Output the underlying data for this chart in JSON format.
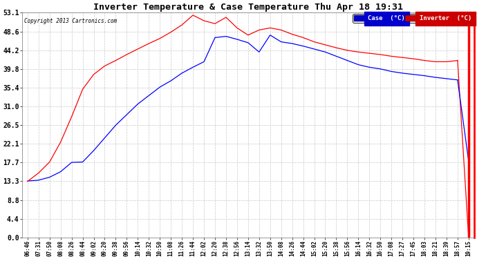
{
  "title": "Inverter Temperature & Case Temperature Thu Apr 18 19:31",
  "copyright": "Copyright 2013 Cartronics.com",
  "y_ticks": [
    0.0,
    4.4,
    8.8,
    13.3,
    17.7,
    22.1,
    26.5,
    31.0,
    35.4,
    39.8,
    44.2,
    48.6,
    53.1
  ],
  "ymin": 0.0,
  "ymax": 53.1,
  "case_color": "#0000ff",
  "inverter_color": "#ff0000",
  "background_color": "#ffffff",
  "grid_color": "#c8c8c8",
  "legend_case_bg": "#0000cc",
  "legend_inv_bg": "#cc0000",
  "x_labels": [
    "06:46",
    "07:31",
    "07:50",
    "08:08",
    "08:26",
    "08:44",
    "09:02",
    "09:20",
    "09:38",
    "09:56",
    "10:14",
    "10:32",
    "10:50",
    "11:08",
    "11:26",
    "11:44",
    "12:02",
    "12:20",
    "12:38",
    "12:56",
    "13:14",
    "13:32",
    "13:50",
    "14:08",
    "14:26",
    "14:44",
    "15:02",
    "15:20",
    "15:38",
    "15:56",
    "16:14",
    "16:32",
    "16:50",
    "17:08",
    "17:27",
    "17:45",
    "18:03",
    "18:21",
    "18:39",
    "18:57",
    "19:15"
  ],
  "case_data": [
    13.3,
    13.5,
    14.2,
    15.5,
    17.7,
    17.8,
    20.5,
    23.5,
    26.5,
    29.0,
    31.5,
    33.5,
    35.5,
    37.0,
    38.8,
    40.2,
    41.5,
    47.2,
    47.5,
    46.8,
    46.0,
    43.8,
    47.8,
    46.2,
    45.8,
    45.2,
    44.5,
    43.8,
    42.8,
    41.8,
    40.8,
    40.2,
    39.8,
    39.2,
    38.8,
    38.5,
    38.2,
    37.8,
    37.5,
    37.2,
    18.0
  ],
  "inverter_data": [
    13.2,
    15.2,
    17.8,
    22.5,
    28.5,
    35.0,
    38.5,
    40.5,
    41.8,
    43.2,
    44.5,
    45.8,
    47.0,
    48.5,
    50.2,
    52.5,
    51.2,
    50.5,
    52.0,
    49.5,
    47.8,
    49.0,
    49.5,
    49.0,
    48.0,
    47.2,
    46.2,
    45.5,
    44.8,
    44.2,
    43.8,
    43.5,
    43.2,
    42.8,
    42.5,
    42.2,
    41.8,
    41.5,
    41.5,
    41.8,
    0.0
  ]
}
